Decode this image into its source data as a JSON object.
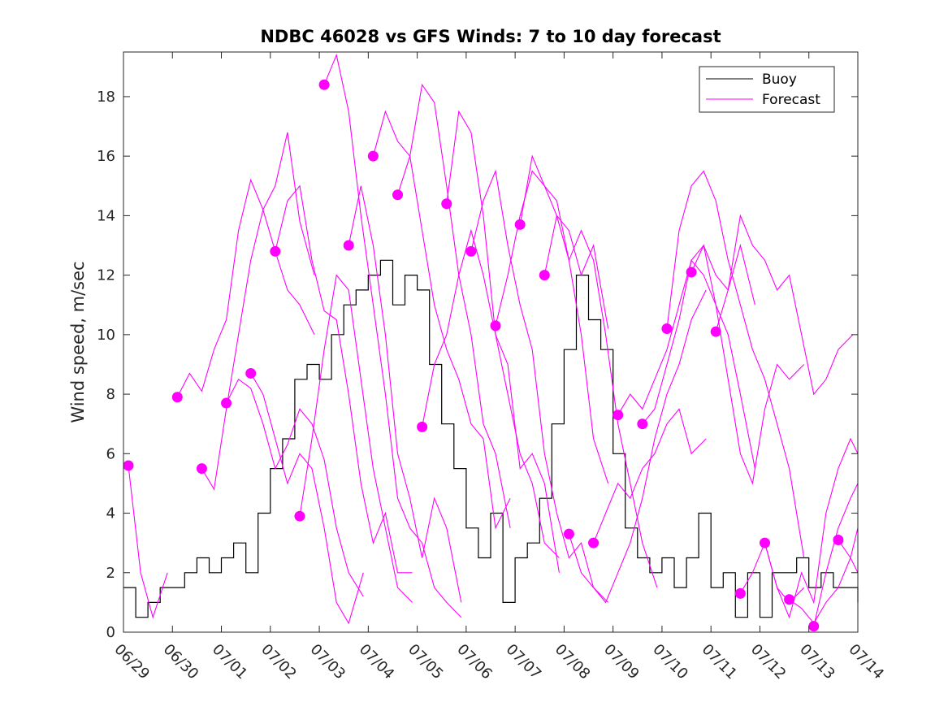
{
  "chart_data": {
    "type": "line",
    "title": "NDBC 46028 vs GFS Winds: 7 to 10 day forecast",
    "xlabel": "",
    "ylabel": "Wind speed, m/sec",
    "xlim": [
      0,
      15
    ],
    "ylim": [
      0,
      19.5
    ],
    "grid": false,
    "legend_position": "top-right",
    "x_tick_labels": [
      "06/29",
      "06/30",
      "07/01",
      "07/02",
      "07/03",
      "07/04",
      "07/05",
      "07/06",
      "07/07",
      "07/08",
      "07/09",
      "07/10",
      "07/11",
      "07/12",
      "07/13",
      "07/14"
    ],
    "y_ticks": [
      0,
      2,
      4,
      6,
      8,
      10,
      12,
      14,
      16,
      18
    ],
    "colors": {
      "buoy": "#000000",
      "forecast": "#ff00ff"
    },
    "series": [
      {
        "name": "Buoy",
        "style": "step-line",
        "x": [
          0,
          0.25,
          0.5,
          0.75,
          1.0,
          1.25,
          1.5,
          1.75,
          2.0,
          2.25,
          2.5,
          2.75,
          3.0,
          3.25,
          3.5,
          3.75,
          4.0,
          4.25,
          4.5,
          4.75,
          5.0,
          5.25,
          5.5,
          5.75,
          6.0,
          6.25,
          6.5,
          6.75,
          7.0,
          7.25,
          7.5,
          7.75,
          8.0,
          8.25,
          8.5,
          8.75,
          9.0,
          9.25,
          9.5,
          9.75,
          10.0,
          10.25,
          10.5,
          10.75,
          11.0,
          11.25,
          11.5,
          11.75,
          12.0,
          12.25,
          12.5,
          12.75,
          13.0,
          13.25,
          13.5,
          13.75,
          14.0,
          14.25,
          14.5,
          14.75,
          15.0
        ],
        "values": [
          1.5,
          0.5,
          1.0,
          1.5,
          1.5,
          2.0,
          2.5,
          2.0,
          2.5,
          3.0,
          2.0,
          4.0,
          5.5,
          6.5,
          8.5,
          9.0,
          8.5,
          10.0,
          11.0,
          11.5,
          12.0,
          12.5,
          11.0,
          12.0,
          11.5,
          9.0,
          7.0,
          5.5,
          3.5,
          2.5,
          4.0,
          1.0,
          2.5,
          3.0,
          4.5,
          7.0,
          9.5,
          12.0,
          10.5,
          9.5,
          6.0,
          3.5,
          2.5,
          2.0,
          2.5,
          1.5,
          2.5,
          4.0,
          1.5,
          2.0,
          0.5,
          2.0,
          0.5,
          2.0,
          2.0,
          2.5,
          1.5,
          2.0,
          1.5,
          1.5,
          1.0
        ]
      },
      {
        "name": "Forecast",
        "style": "lines",
        "runs": [
          {
            "x": [
              0.1,
              0.35,
              0.6,
              0.9
            ],
            "values": [
              5.6,
              2.0,
              0.5,
              2.0
            ]
          },
          {
            "x": [
              1.1,
              1.35,
              1.6,
              1.85,
              2.1,
              2.35,
              2.6,
              2.85,
              3.1,
              3.35,
              3.6,
              3.9
            ],
            "values": [
              7.9,
              8.7,
              8.1,
              9.5,
              10.5,
              13.5,
              15.2,
              14.2,
              15.0,
              16.8,
              13.8,
              12.0
            ]
          },
          {
            "x": [
              1.6,
              1.85,
              2.1,
              2.35,
              2.6,
              2.85,
              3.1,
              3.35,
              3.6,
              3.9
            ],
            "values": [
              5.5,
              4.8,
              7.5,
              10.0,
              12.5,
              14.2,
              12.8,
              11.5,
              11.0,
              10.0
            ]
          },
          {
            "x": [
              2.1,
              2.35,
              2.6,
              2.85,
              3.1,
              3.35,
              3.6,
              3.85,
              4.1,
              4.35,
              4.6,
              4.9
            ],
            "values": [
              7.7,
              8.5,
              8.2,
              7.0,
              5.5,
              6.3,
              7.5,
              7.0,
              5.8,
              3.5,
              2.0,
              1.2
            ]
          },
          {
            "x": [
              2.6,
              2.85,
              3.1,
              3.35,
              3.6,
              3.85,
              4.1,
              4.35,
              4.6,
              4.9
            ],
            "values": [
              8.7,
              8.0,
              6.5,
              5.0,
              6.0,
              5.5,
              3.5,
              1.0,
              0.3,
              2.0
            ]
          },
          {
            "x": [
              3.1,
              3.35,
              3.6,
              3.85,
              4.1,
              4.35,
              4.6,
              4.85,
              5.1,
              5.35,
              5.6,
              5.9
            ],
            "values": [
              12.8,
              14.5,
              15.0,
              12.5,
              10.8,
              10.5,
              8.0,
              5.0,
              3.0,
              4.0,
              2.0,
              2.0
            ]
          },
          {
            "x": [
              3.6,
              3.85,
              4.1,
              4.35,
              4.6,
              4.85,
              5.1,
              5.35,
              5.6,
              5.9
            ],
            "values": [
              3.9,
              6.5,
              9.5,
              12.0,
              11.5,
              8.5,
              5.5,
              3.5,
              1.5,
              1.0
            ]
          },
          {
            "x": [
              4.1,
              4.35,
              4.6,
              4.85,
              5.1,
              5.35,
              5.6,
              5.85,
              6.1,
              6.35,
              6.6,
              6.9
            ],
            "values": [
              18.4,
              19.4,
              17.5,
              14.0,
              11.0,
              8.0,
              4.5,
              3.5,
              3.0,
              1.5,
              1.0,
              0.5
            ]
          },
          {
            "x": [
              4.6,
              4.85,
              5.1,
              5.35,
              5.6,
              5.85,
              6.1,
              6.35,
              6.6,
              6.9
            ],
            "values": [
              13.0,
              15.0,
              13.0,
              10.0,
              6.0,
              4.5,
              2.5,
              4.5,
              3.5,
              1.0
            ]
          },
          {
            "x": [
              5.1,
              5.35,
              5.6,
              5.85,
              6.1,
              6.35,
              6.6,
              6.85,
              7.1,
              7.35,
              7.6,
              7.9
            ],
            "values": [
              16.0,
              17.5,
              16.5,
              16.0,
              13.5,
              11.0,
              9.5,
              8.5,
              7.0,
              6.5,
              3.5,
              4.5
            ]
          },
          {
            "x": [
              5.6,
              5.85,
              6.1,
              6.35,
              6.6,
              6.85,
              7.1,
              7.35,
              7.6,
              7.9
            ],
            "values": [
              14.7,
              16.0,
              18.4,
              17.8,
              15.0,
              12.0,
              10.0,
              7.0,
              6.0,
              3.5
            ]
          },
          {
            "x": [
              6.1,
              6.35,
              6.6,
              6.85,
              7.1,
              7.35,
              7.6,
              7.85,
              8.1,
              8.35,
              8.6,
              8.9
            ],
            "values": [
              6.9,
              9.0,
              10.0,
              12.0,
              13.5,
              12.0,
              10.0,
              8.0,
              6.0,
              5.0,
              3.0,
              2.5
            ]
          },
          {
            "x": [
              6.6,
              6.85,
              7.1,
              7.35,
              7.6,
              7.85,
              8.1,
              8.35,
              8.6,
              8.9
            ],
            "values": [
              14.4,
              17.5,
              16.8,
              14.0,
              10.0,
              9.0,
              5.5,
              6.0,
              5.0,
              2.0
            ]
          },
          {
            "x": [
              7.1,
              7.35,
              7.6,
              7.85,
              8.1,
              8.35,
              8.6,
              8.85,
              9.1,
              9.35,
              9.6,
              9.9
            ],
            "values": [
              12.8,
              14.5,
              15.5,
              13.0,
              11.0,
              9.5,
              6.0,
              4.0,
              2.5,
              3.0,
              1.5,
              1.0
            ]
          },
          {
            "x": [
              7.6,
              7.85,
              8.1,
              8.35,
              8.6,
              8.85,
              9.1,
              9.35,
              9.6,
              9.9
            ],
            "values": [
              10.3,
              12.0,
              14.0,
              15.5,
              15.0,
              14.0,
              12.5,
              10.0,
              6.5,
              5.0
            ]
          },
          {
            "x": [
              8.1,
              8.35,
              8.6,
              8.85,
              9.1,
              9.35,
              9.6,
              9.85,
              10.1,
              10.35,
              10.6,
              10.9
            ],
            "values": [
              13.7,
              16.0,
              15.0,
              14.5,
              12.5,
              13.5,
              12.5,
              10.0,
              7.0,
              5.0,
              3.0,
              1.5
            ]
          },
          {
            "x": [
              8.6,
              8.85,
              9.1,
              9.35,
              9.6,
              9.9
            ],
            "values": [
              12.0,
              14.0,
              13.5,
              12.0,
              13.0,
              10.2
            ]
          },
          {
            "x": [
              9.1,
              9.35,
              9.6,
              9.85,
              10.1,
              10.35,
              10.6,
              10.85,
              11.1,
              11.35,
              11.6,
              11.9
            ],
            "values": [
              3.3,
              2.0,
              1.5,
              1.0,
              2.0,
              3.0,
              4.5,
              6.5,
              8.0,
              9.0,
              10.5,
              11.5
            ]
          },
          {
            "x": [
              9.6,
              9.85,
              10.1,
              10.35,
              10.6,
              10.85,
              11.1,
              11.35,
              11.6,
              11.9
            ],
            "values": [
              3.0,
              4.0,
              5.0,
              4.5,
              5.5,
              6.0,
              7.0,
              7.5,
              6.0,
              6.5
            ]
          },
          {
            "x": [
              10.1,
              10.35,
              10.6,
              10.85,
              11.1,
              11.35,
              11.6,
              11.85,
              12.1,
              12.35,
              12.6,
              12.9
            ],
            "values": [
              7.3,
              8.0,
              7.5,
              8.5,
              9.5,
              11.0,
              12.5,
              13.0,
              12.0,
              11.5,
              13.0,
              11.0
            ]
          },
          {
            "x": [
              10.6,
              10.85,
              11.1,
              11.35,
              11.6,
              11.85,
              12.1,
              12.35,
              12.6,
              12.9
            ],
            "values": [
              7.0,
              7.5,
              9.0,
              10.5,
              12.5,
              12.0,
              11.0,
              10.0,
              8.0,
              5.5
            ]
          },
          {
            "x": [
              11.1,
              11.35,
              11.6,
              11.85,
              12.1,
              12.35,
              12.6,
              12.85,
              13.1,
              13.35,
              13.6,
              13.9
            ],
            "values": [
              10.2,
              13.5,
              15.0,
              15.5,
              14.5,
              12.5,
              11.0,
              9.5,
              8.5,
              7.0,
              5.5,
              2.5
            ]
          },
          {
            "x": [
              11.6,
              11.85,
              12.1,
              12.35,
              12.6,
              12.85,
              13.1,
              13.35,
              13.6,
              13.9
            ],
            "values": [
              12.1,
              13.0,
              11.0,
              8.5,
              6.0,
              5.0,
              7.5,
              9.0,
              8.5,
              9.0
            ]
          },
          {
            "x": [
              12.1,
              12.35,
              12.6,
              12.85,
              13.1,
              13.35,
              13.6,
              13.85,
              14.1,
              14.35,
              14.6,
              14.9
            ],
            "values": [
              10.1,
              11.5,
              14.0,
              13.0,
              12.5,
              11.5,
              12.0,
              10.0,
              8.0,
              8.5,
              9.5,
              10.0
            ]
          },
          {
            "x": [
              12.6,
              12.85,
              13.1,
              13.35,
              13.6,
              13.9
            ],
            "values": [
              1.3,
              2.0,
              3.0,
              1.5,
              1.0,
              1.5
            ]
          },
          {
            "x": [
              13.1,
              13.35,
              13.6,
              13.85,
              14.1,
              14.35,
              14.6,
              14.85,
              15.0
            ],
            "values": [
              3.0,
              1.5,
              0.5,
              2.0,
              1.0,
              4.0,
              5.5,
              6.5,
              6.0
            ]
          },
          {
            "x": [
              13.6,
              13.85,
              14.1,
              14.35,
              14.6,
              14.85,
              15.0
            ],
            "values": [
              1.1,
              0.8,
              0.3,
              1.0,
              1.5,
              2.5,
              3.5
            ]
          },
          {
            "x": [
              14.1,
              14.35,
              14.6,
              14.85,
              15.0
            ],
            "values": [
              0.2,
              2.0,
              3.5,
              4.5,
              5.0
            ]
          },
          {
            "x": [
              14.6,
              14.85,
              15.0
            ],
            "values": [
              3.1,
              2.5,
              2.0
            ]
          }
        ],
        "markers": {
          "x": [
            0.1,
            1.1,
            1.6,
            2.1,
            2.6,
            3.1,
            3.6,
            4.1,
            4.6,
            5.1,
            5.6,
            6.1,
            6.6,
            7.1,
            7.6,
            8.1,
            8.6,
            9.1,
            9.6,
            10.1,
            10.6,
            11.1,
            11.6,
            12.1,
            12.6,
            13.1,
            13.6,
            14.1,
            14.6
          ],
          "values": [
            5.6,
            7.9,
            5.5,
            7.7,
            8.7,
            12.8,
            3.9,
            18.4,
            13.0,
            16.0,
            14.7,
            6.9,
            14.4,
            12.8,
            10.3,
            13.7,
            12.0,
            3.3,
            3.0,
            7.3,
            7.0,
            10.2,
            12.1,
            10.1,
            1.3,
            3.0,
            1.1,
            0.2,
            3.1
          ]
        }
      }
    ]
  }
}
